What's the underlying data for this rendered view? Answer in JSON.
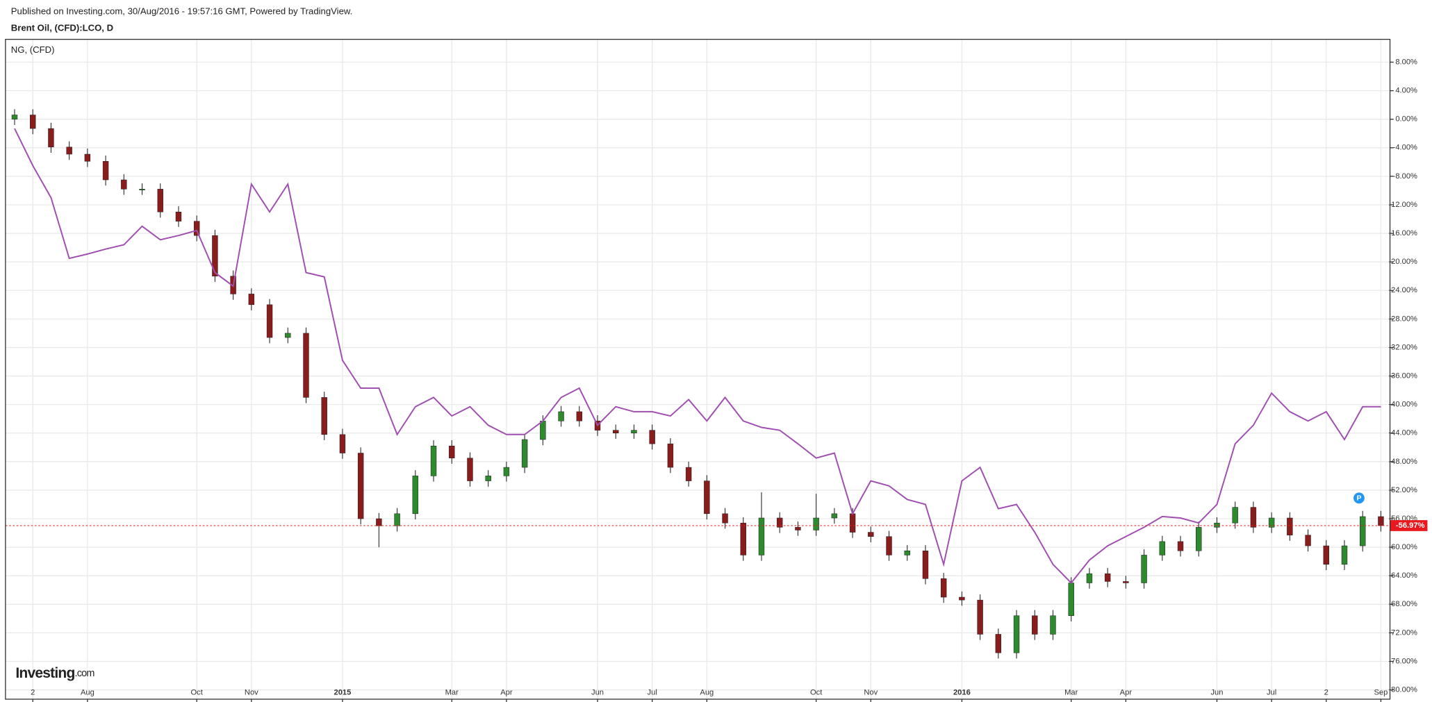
{
  "chart_data": {
    "type": "candlestick",
    "published": "Published on Investing.com, 30/Aug/2016 - 19:57:16 GMT, Powered by TradingView.",
    "title": "Brent Oil, (CFD):LCO, D",
    "categories": [
      null,
      "2",
      null,
      null,
      "Aug",
      null,
      null,
      null,
      null,
      null,
      "Oct",
      null,
      null,
      "Nov",
      null,
      null,
      null,
      null,
      "2015",
      null,
      null,
      null,
      null,
      null,
      "Mar",
      null,
      null,
      "Apr",
      null,
      null,
      null,
      null,
      "Jun",
      null,
      null,
      "Jul",
      null,
      null,
      "Aug",
      null,
      null,
      null,
      null,
      null,
      "Oct",
      null,
      null,
      "Nov",
      null,
      null,
      null,
      null,
      "2016",
      null,
      null,
      null,
      null,
      null,
      "Mar",
      null,
      null,
      "Apr",
      null,
      null,
      null,
      null,
      "Jun",
      null,
      null,
      "Jul",
      null,
      null,
      "2",
      null,
      null,
      "Sep"
    ],
    "open": [
      0,
      0.6,
      -1.3,
      -3.9,
      -4.9,
      -5.9,
      -8.5,
      -9.8,
      -9.8,
      -13,
      -14.3,
      -16.3,
      -22,
      -24.5,
      -26,
      -30.6,
      -30,
      -39,
      -44.2,
      -46.8,
      -56,
      -57,
      -55.3,
      -50,
      -45.8,
      -47.5,
      -50.7,
      -50,
      -48.8,
      -44.9,
      -42.3,
      -41,
      -42.3,
      -43.6,
      -44,
      -43.6,
      -45.5,
      -48.8,
      -50.7,
      -55.3,
      -56.6,
      -61.1,
      -55.9,
      -57.2,
      -57.6,
      -55.9,
      -55.3,
      -57.9,
      -58.5,
      -61.1,
      -60.5,
      -64.4,
      -67,
      -67.4,
      -72.2,
      -74.8,
      -69.6,
      -72.2,
      -69.6,
      -65,
      -63.7,
      -64.8,
      -65,
      -61.1,
      -59.2,
      -60.5,
      -57.2,
      -56.6,
      -54.4,
      -57.2,
      -55.9,
      -58.3,
      -59.8,
      -62.4,
      -59.8,
      -55.7
    ],
    "high": [
      1.4,
      1.4,
      -0.5,
      -3.1,
      -4.1,
      -5.1,
      -7.7,
      -9,
      -9,
      -12.2,
      -13.5,
      -15.5,
      -21.2,
      -23.7,
      -25.2,
      -29.2,
      -29.2,
      -38.2,
      -43.4,
      -46,
      -55.2,
      -54.5,
      -49.2,
      -45,
      -45,
      -46.7,
      -49.2,
      -48,
      -44.1,
      -41.5,
      -40.2,
      -40.2,
      -41.5,
      -42.8,
      -42.8,
      -42.8,
      -44.7,
      -48,
      -49.9,
      -54.5,
      -55.8,
      -52.3,
      -55.1,
      -56.4,
      -52.5,
      -54.5,
      -54.5,
      -57.1,
      -57.7,
      -59.7,
      -59.7,
      -63.6,
      -66.2,
      -66.6,
      -71.4,
      -68.8,
      -68.8,
      -68.8,
      -64.2,
      -62.9,
      -62.9,
      -64,
      -60.3,
      -58.4,
      -58.4,
      -56.4,
      -55.8,
      -53.6,
      -53.6,
      -55.1,
      -55.1,
      -57.5,
      -59,
      -59,
      -54.9,
      -54.9
    ],
    "low": [
      -0.8,
      -2.1,
      -4.7,
      -5.7,
      -6.7,
      -9.3,
      -10.6,
      -10.6,
      -13.8,
      -15.1,
      -17.1,
      -22.8,
      -25.3,
      -26.8,
      -31.4,
      -31.4,
      -39.8,
      -45,
      -47.6,
      -56.8,
      -60,
      -57.8,
      -56.1,
      -50.8,
      -48.3,
      -51.5,
      -51.5,
      -50.8,
      -49.6,
      -45.7,
      -43.1,
      -43.1,
      -44.4,
      -44.8,
      -44.8,
      -46.3,
      -49.6,
      -51.5,
      -56.1,
      -57.4,
      -61.9,
      -61.9,
      -58,
      -58.4,
      -58.4,
      -56.7,
      -58.7,
      -59.3,
      -61.9,
      -61.9,
      -65.2,
      -67.8,
      -68.2,
      -73,
      -75.6,
      -75.6,
      -73,
      -73,
      -70.4,
      -65.8,
      -65.6,
      -65.8,
      -65.8,
      -61.9,
      -61.3,
      -61.3,
      -58,
      -57.4,
      -58,
      -58,
      -59.1,
      -60.6,
      -63.2,
      -63.2,
      -60.6,
      -57.8
    ],
    "close": [
      0.6,
      -1.3,
      -3.9,
      -4.9,
      -5.9,
      -8.5,
      -9.8,
      -9.8,
      -13,
      -14.3,
      -16.3,
      -22,
      -24.5,
      -26,
      -30.6,
      -30,
      -39,
      -44.2,
      -46.8,
      -56,
      -57,
      -55.3,
      -50,
      -45.8,
      -47.5,
      -50.7,
      -50,
      -48.8,
      -44.9,
      -42.3,
      -41,
      -42.3,
      -43.6,
      -44,
      -43.6,
      -45.5,
      -48.8,
      -50.7,
      -55.3,
      -56.6,
      -61.1,
      -55.9,
      -57.2,
      -57.6,
      -55.9,
      -55.3,
      -57.9,
      -58.5,
      -61.1,
      -60.5,
      -64.4,
      -67,
      -67.4,
      -72.2,
      -74.8,
      -69.6,
      -72.2,
      -69.6,
      -65,
      -63.7,
      -64.8,
      -65,
      -61.1,
      -59.2,
      -60.5,
      -57.2,
      -56.6,
      -54.4,
      -57.2,
      -55.9,
      -58.3,
      -59.8,
      -62.4,
      -59.8,
      -55.7,
      -56.97
    ],
    "up_color": "#2d8a2d",
    "down_color": "#8b1c1c",
    "overlays": [
      {
        "type": "line",
        "name": "NG,  (CFD)",
        "color": "#a04fb0",
        "values": [
          -1.3,
          -6.5,
          -11,
          -19.5,
          -18.9,
          -18.2,
          -17.6,
          -15,
          -16.9,
          -16.3,
          -15.6,
          -21.5,
          -23.4,
          -9.1,
          -13,
          -9.1,
          -21.5,
          -22.1,
          -33.8,
          -37.7,
          -37.7,
          -44.2,
          -40.3,
          -39,
          -41.6,
          -40.3,
          -42.9,
          -44.2,
          -44.2,
          -42.3,
          -39,
          -37.7,
          -42.9,
          -40.3,
          -41,
          -41,
          -41.6,
          -39.3,
          -42.3,
          -39,
          -42.3,
          -43.2,
          -43.6,
          -45.5,
          -47.5,
          -46.8,
          -55.3,
          -50.7,
          -51.4,
          -53.3,
          -54,
          -62.4,
          -50.7,
          -48.8,
          -54.6,
          -54,
          -57.9,
          -62.4,
          -65,
          -61.8,
          -59.8,
          -58.5,
          -57.2,
          -55.7,
          -55.9,
          -56.6,
          -54,
          -45.5,
          -42.9,
          -38.4,
          -41,
          -42.3,
          -41,
          -44.9,
          -40.3,
          -40.3
        ]
      }
    ],
    "ylim": [
      -81.3,
      11.2
    ],
    "yticks": [
      {
        "value": 8,
        "label": "8.00%"
      },
      {
        "value": 4,
        "label": "4.00%"
      },
      {
        "value": 0,
        "label": "0.00%"
      },
      {
        "value": -4,
        "label": "-4.00%"
      },
      {
        "value": -8,
        "label": "-8.00%"
      },
      {
        "value": -12,
        "label": "-12.00%"
      },
      {
        "value": -16,
        "label": "-16.00%"
      },
      {
        "value": -20,
        "label": "-20.00%"
      },
      {
        "value": -24,
        "label": "-24.00%"
      },
      {
        "value": -28,
        "label": "-28.00%"
      },
      {
        "value": -32,
        "label": "-32.00%"
      },
      {
        "value": -36,
        "label": "-36.00%"
      },
      {
        "value": -40,
        "label": "-40.00%"
      },
      {
        "value": -44,
        "label": "-44.00%"
      },
      {
        "value": -48,
        "label": "-48.00%"
      },
      {
        "value": -52,
        "label": "-52.00%"
      },
      {
        "value": -56,
        "label": "-56.00%"
      },
      {
        "value": -60,
        "label": "-60.00%"
      },
      {
        "value": -64,
        "label": "-64.00%"
      },
      {
        "value": -68,
        "label": "-68.00%"
      },
      {
        "value": -72,
        "label": "-72.00%"
      },
      {
        "value": -76,
        "label": "-76.00%"
      },
      {
        "value": -80,
        "label": "-80.00%"
      }
    ],
    "grid": true,
    "last_price": {
      "value": -56.97,
      "label": "-56.97%"
    },
    "last_price_color": "#e8191f",
    "badge": "P",
    "badge_color": "#2196f3",
    "logo": {
      "brand": "Investing",
      "suffix": ".com"
    }
  }
}
